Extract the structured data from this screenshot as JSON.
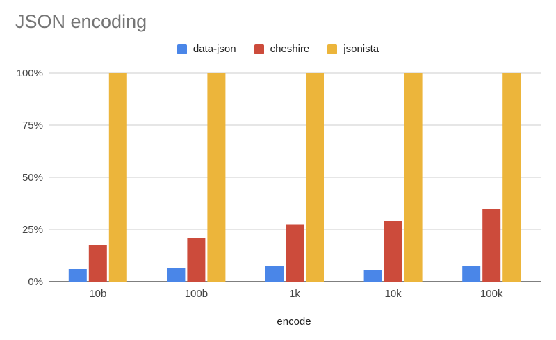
{
  "chart_data": {
    "type": "bar",
    "title": "JSON encoding",
    "xlabel": "encode",
    "ylabel": "",
    "categories": [
      "10b",
      "100b",
      "1k",
      "10k",
      "100k"
    ],
    "series": [
      {
        "name": "data-json",
        "color": "#4a86e8",
        "values": [
          6,
          6.5,
          7.5,
          5.5,
          7.5
        ]
      },
      {
        "name": "cheshire",
        "color": "#cc4b3b",
        "values": [
          17.5,
          21,
          27.5,
          29,
          35
        ]
      },
      {
        "name": "jsonista",
        "color": "#ecb53b",
        "values": [
          100,
          100,
          100,
          100,
          100
        ]
      }
    ],
    "ylim": [
      0,
      100
    ],
    "yticks": [
      "0%",
      "25%",
      "50%",
      "75%",
      "100%"
    ],
    "ytick_values": [
      0,
      25,
      50,
      75,
      100
    ],
    "grid": true,
    "legend_position": "top"
  }
}
